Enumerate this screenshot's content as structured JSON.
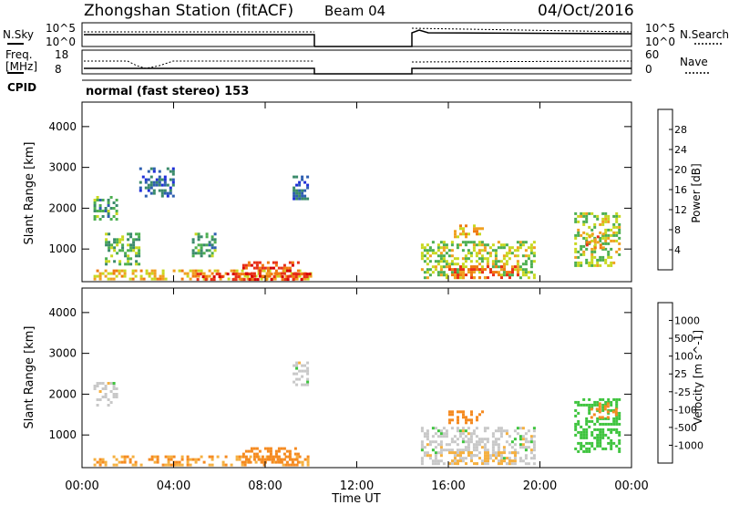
{
  "header": {
    "title": "Zhongshan Station (fitACF)",
    "beam": "Beam 04",
    "date": "04/Oct/2016"
  },
  "sky_panel": {
    "left_label": "N.Sky",
    "right_label": "N.Search",
    "left_ticks": [
      "10^5",
      "10^0"
    ],
    "right_ticks": [
      "10^5",
      "10^0"
    ]
  },
  "freq_panel": {
    "left_label_1": "Freq.",
    "left_label_2": "[MHz]",
    "right_label": "Nave",
    "left_ticks": [
      "18",
      "8"
    ],
    "right_ticks": [
      "60",
      "0"
    ]
  },
  "cpid": {
    "label": "CPID",
    "text": "normal (fast stereo) 153"
  },
  "colors": {
    "power": [
      "#1f2fd8",
      "#2e5fb0",
      "#3a8a6a",
      "#4caf50",
      "#c8d820",
      "#f0a020",
      "#f07a10",
      "#e83018",
      "#d80000"
    ],
    "velocity": [
      "#e00000",
      "#f04a10",
      "#f58a20",
      "#f5b040",
      "#c8c8c8",
      "#3ec43e",
      "#2e8a5a",
      "#2e5fb0",
      "#1f2fd8"
    ]
  },
  "chart_data": [
    {
      "type": "heatmap",
      "name": "power",
      "ylabel": "Slant Range [km]",
      "y_ticks": [
        "1000",
        "2000",
        "3000",
        "4000"
      ],
      "ylim": [
        200,
        4600
      ],
      "x_ticks": [
        "00:00",
        "04:00",
        "08:00",
        "12:00",
        "16:00",
        "20:00",
        "00:00"
      ],
      "xlim_hours": [
        0,
        24
      ],
      "colorbar": {
        "label": "Power [dB]",
        "ticks": [
          "28",
          "24",
          "20",
          "16",
          "12",
          "8",
          "4"
        ],
        "range": [
          0,
          30
        ]
      },
      "regions": [
        {
          "x": [
            0.5,
            10.0
          ],
          "y": [
            250,
            500
          ],
          "value": 18
        },
        {
          "x": [
            5.0,
            10.0
          ],
          "y": [
            250,
            420
          ],
          "value": 26
        },
        {
          "x": [
            7.0,
            9.5
          ],
          "y": [
            300,
            700
          ],
          "value": 24
        },
        {
          "x": [
            0.5,
            1.5
          ],
          "y": [
            1700,
            2300
          ],
          "value": 10
        },
        {
          "x": [
            1.0,
            2.5
          ],
          "y": [
            600,
            1400
          ],
          "value": 12
        },
        {
          "x": [
            9.2,
            9.9
          ],
          "y": [
            2200,
            2800
          ],
          "value": 6
        },
        {
          "x": [
            4.8,
            5.8
          ],
          "y": [
            800,
            1400
          ],
          "value": 10
        },
        {
          "x": [
            2.5,
            4.0
          ],
          "y": [
            2300,
            3000
          ],
          "value": 6
        },
        {
          "x": [
            14.8,
            19.8
          ],
          "y": [
            300,
            1200
          ],
          "value": 14
        },
        {
          "x": [
            16.0,
            19.0
          ],
          "y": [
            300,
            600
          ],
          "value": 22
        },
        {
          "x": [
            16.0,
            17.5
          ],
          "y": [
            1300,
            1600
          ],
          "value": 18
        },
        {
          "x": [
            21.5,
            23.5
          ],
          "y": [
            600,
            1900
          ],
          "value": 14
        },
        {
          "x": [
            22.0,
            22.8
          ],
          "y": [
            1000,
            1400
          ],
          "value": 20
        }
      ]
    },
    {
      "type": "heatmap",
      "name": "velocity",
      "ylabel": "Slant Range [km]",
      "y_ticks": [
        "1000",
        "2000",
        "3000",
        "4000"
      ],
      "ylim": [
        200,
        4600
      ],
      "x_ticks": [
        "00:00",
        "04:00",
        "08:00",
        "12:00",
        "16:00",
        "20:00",
        "00:00"
      ],
      "xlabel": "Time UT",
      "xlim_hours": [
        0,
        24
      ],
      "colorbar": {
        "label": "Velocity [m s^-1]",
        "ticks": [
          "1000",
          "500",
          "100",
          "25",
          "-25",
          "-100",
          "-500",
          "-1000"
        ]
      },
      "regions": [
        {
          "x": [
            0.5,
            10.0
          ],
          "y": [
            250,
            500
          ],
          "value": -100
        },
        {
          "x": [
            7.0,
            9.5
          ],
          "y": [
            300,
            700
          ],
          "value": -200
        },
        {
          "x": [
            0.5,
            1.5
          ],
          "y": [
            1700,
            2300
          ],
          "value": 0
        },
        {
          "x": [
            9.2,
            9.9
          ],
          "y": [
            2200,
            2800
          ],
          "value": 0
        },
        {
          "x": [
            14.8,
            19.8
          ],
          "y": [
            300,
            1200
          ],
          "value": 0
        },
        {
          "x": [
            16.0,
            19.0
          ],
          "y": [
            300,
            600
          ],
          "value": -50
        },
        {
          "x": [
            16.0,
            17.5
          ],
          "y": [
            1300,
            1600
          ],
          "value": -300
        },
        {
          "x": [
            21.5,
            23.5
          ],
          "y": [
            600,
            1900
          ],
          "value": 60
        },
        {
          "x": [
            22.2,
            23.3
          ],
          "y": [
            1400,
            1800
          ],
          "value": -300
        }
      ]
    }
  ]
}
